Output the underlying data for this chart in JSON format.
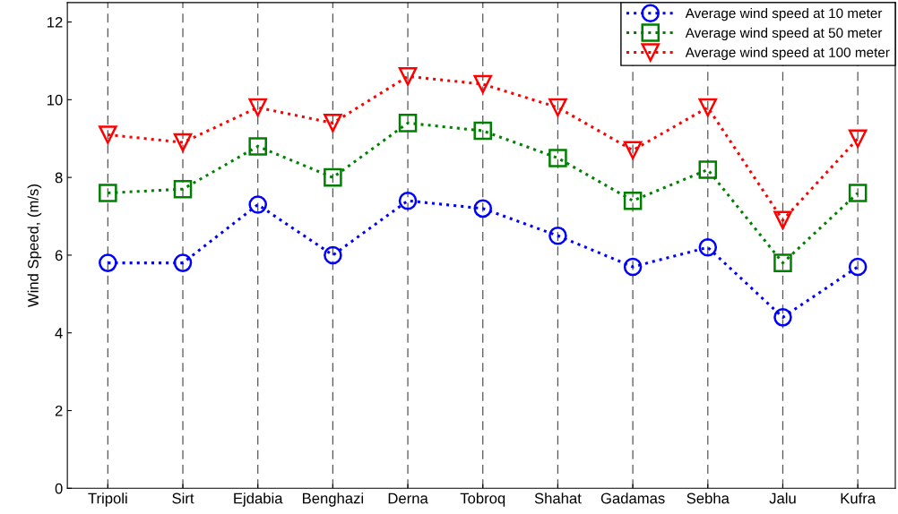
{
  "chart_data": {
    "type": "line",
    "ylabel": "Wind Speed, (m/s)",
    "categories": [
      "Tripoli",
      "Sirt",
      "Ejdabia",
      "Benghazi",
      "Derna",
      "Tobroq",
      "Shahat",
      "Gadamas",
      "Sebha",
      "Jalu",
      "Kufra"
    ],
    "series": [
      {
        "name": "Average wind speed at 10 meter",
        "color": "#0000ff",
        "marker": "circle",
        "values": [
          5.8,
          5.8,
          7.3,
          6.0,
          7.4,
          7.2,
          6.5,
          5.7,
          6.2,
          4.4,
          5.7
        ]
      },
      {
        "name": "Average wind speed at 50 meter",
        "color": "#008000",
        "marker": "square",
        "values": [
          7.6,
          7.7,
          8.8,
          8.0,
          9.4,
          9.2,
          8.5,
          7.4,
          8.2,
          5.8,
          7.6
        ]
      },
      {
        "name": "Average wind speed at 100 meter",
        "color": "#ff0000",
        "marker": "triangle",
        "values": [
          9.1,
          8.9,
          9.8,
          9.4,
          10.6,
          10.4,
          9.8,
          8.7,
          9.8,
          6.9,
          9.0
        ]
      }
    ],
    "ylim": [
      0,
      12.5
    ],
    "yticks": [
      0,
      2,
      4,
      6,
      8,
      10,
      12
    ],
    "grid": "x",
    "legend": "top right",
    "line_style": "dotted"
  }
}
